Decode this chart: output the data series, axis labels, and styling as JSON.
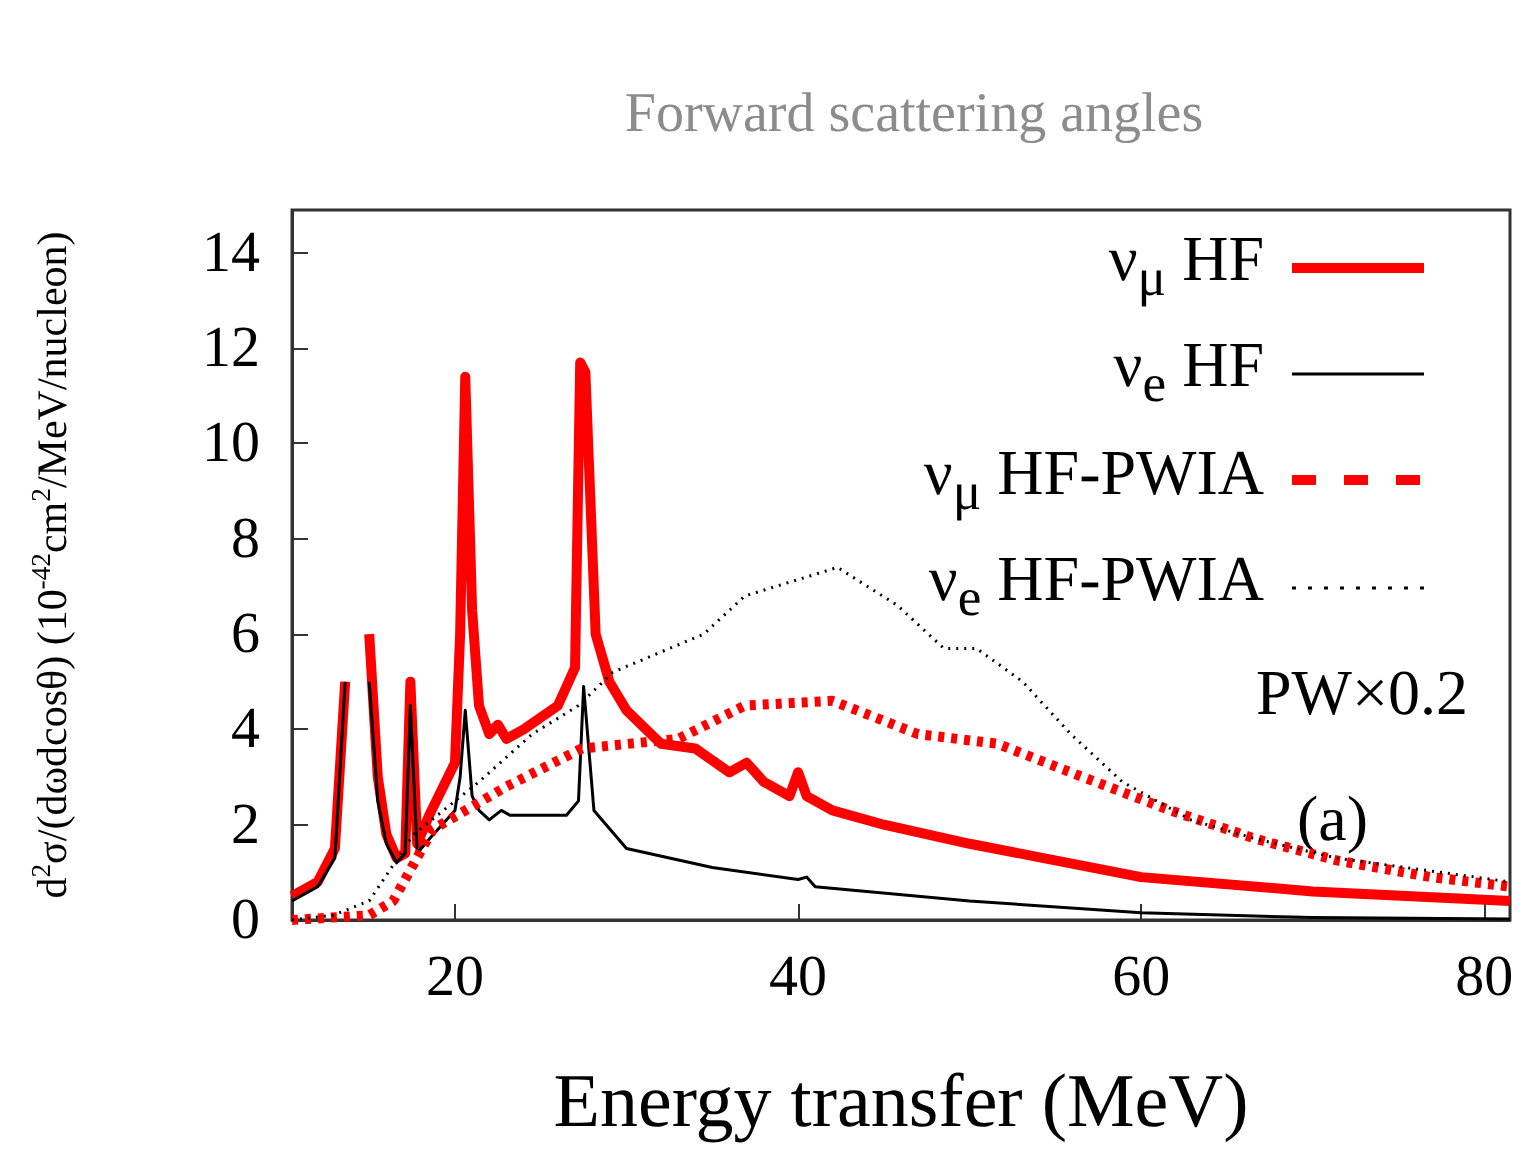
{
  "chart_data": {
    "type": "line",
    "title": "Forward scattering angles",
    "xlabel": "Energy transfer (MeV)",
    "ylabel": "d$^{2}$σ/(dωdcosθ) (10$^{-42}$cm$^{2}$/MeV/nucleon)",
    "xlim": [
      10.5,
      81.5
    ],
    "xticks": [
      20,
      40,
      60,
      80
    ],
    "ylim": [
      0,
      14.9
    ],
    "yticks": [
      0,
      2,
      4,
      6,
      8,
      10,
      12,
      14
    ],
    "grid": false,
    "legend": "top right",
    "marker": "none",
    "annotations": [
      "PW×0.2",
      "(a)"
    ],
    "series": [
      {
        "name": "ν$_{μ}$ HF",
        "color": "#ff0000",
        "line_style": "solid",
        "x": [
          10.5,
          12,
          13,
          13.6,
          14,
          14.5,
          15,
          15.5,
          16,
          16.6,
          17.1,
          17.4,
          17.8,
          18.5,
          20,
          20.3,
          20.6,
          21,
          21.4,
          22,
          22.5,
          23,
          24,
          26,
          27,
          27.3,
          27.6,
          28.2,
          29,
          30,
          32,
          34,
          36,
          37,
          38,
          39.5,
          40,
          40.5,
          42,
          45,
          50,
          60,
          70,
          81.5
        ],
        "values": [
          0.5,
          0.8,
          1.5,
          5,
          null,
          null,
          6,
          3,
          1.8,
          1.3,
          1.4,
          5,
          1.6,
          2.2,
          3.3,
          6,
          11.4,
          6.5,
          4.5,
          3.9,
          4.1,
          3.8,
          4.0,
          4.5,
          5.3,
          11.7,
          11.5,
          6,
          5,
          4.4,
          3.7,
          3.6,
          3.1,
          3.3,
          2.9,
          2.6,
          3.1,
          2.6,
          2.3,
          2.0,
          1.6,
          0.9,
          0.6,
          0.4
        ]
      },
      {
        "name": "ν$_{e}$ HF",
        "color": "#000000",
        "line_style": "solid",
        "x": [
          10.5,
          12,
          13,
          13.6,
          14,
          14.5,
          15,
          15.5,
          16,
          16.6,
          17.1,
          17.4,
          17.8,
          18.5,
          20,
          20.3,
          20.6,
          21,
          21.4,
          22,
          22.7,
          23.2,
          26.5,
          27.2,
          27.5,
          28.1,
          30,
          35,
          40,
          40.5,
          41,
          50,
          60,
          70,
          81.5
        ],
        "values": [
          0.4,
          0.7,
          1.3,
          5,
          null,
          null,
          5,
          2.5,
          1.6,
          1.2,
          1.4,
          4.5,
          1.4,
          1.7,
          2.3,
          3,
          4.4,
          2.6,
          2.3,
          2.1,
          2.3,
          2.2,
          2.2,
          2.5,
          4.9,
          2.3,
          1.5,
          1.1,
          0.85,
          0.9,
          0.7,
          0.4,
          0.15,
          0.05,
          0.02
        ]
      },
      {
        "name": "ν$_{μ}$ HF-PWIA",
        "color": "#ff0000",
        "line_style": "dashed",
        "x": [
          10.5,
          15,
          16.4,
          18.7,
          23,
          27.4,
          33,
          36.9,
          42,
          47,
          51.6,
          56.6,
          61.7,
          66.7,
          71.4,
          76.9,
          81.5
        ],
        "values": [
          0,
          0.1,
          0.4,
          1.9,
          2.8,
          3.6,
          3.8,
          4.5,
          4.6,
          3.9,
          3.7,
          3.0,
          2.3,
          1.7,
          1.25,
          0.9,
          0.7
        ]
      },
      {
        "name": "ν$_{e}$ HF-PWIA",
        "color": "#000000",
        "line_style": "dotted",
        "x": [
          10.5,
          12.9,
          15,
          17.6,
          21.4,
          24.5,
          27.2,
          29.2,
          34.5,
          36.9,
          42.3,
          45.8,
          48.5,
          50.4,
          53.1,
          55.9,
          58.9,
          62.9,
          66.7,
          71.4,
          81.5
        ],
        "values": [
          0,
          0.1,
          0.4,
          1.8,
          2.9,
          3.9,
          4.5,
          5.2,
          6.0,
          6.8,
          7.4,
          6.6,
          5.7,
          5.7,
          5.0,
          3.9,
          2.9,
          2.1,
          1.7,
          1.3,
          0.8
        ]
      }
    ]
  }
}
